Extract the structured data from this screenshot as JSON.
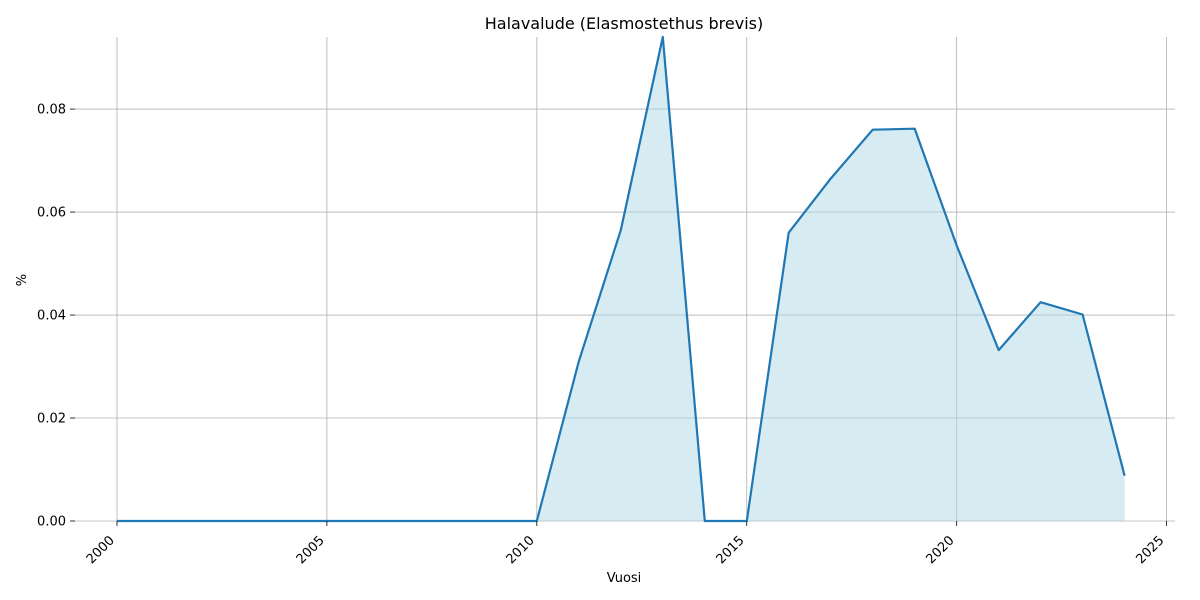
{
  "chart_data": {
    "type": "area",
    "title": "Halavalude (Elasmostethus brevis)",
    "xlabel": "Vuosi",
    "ylabel": "%",
    "xlim": [
      1999,
      2025.2
    ],
    "ylim": [
      0,
      0.094
    ],
    "xticks": [
      "2000",
      "2005",
      "2010",
      "2015",
      "2020",
      "2025"
    ],
    "yticks": [
      "0.00",
      "0.02",
      "0.04",
      "0.06",
      "0.08"
    ],
    "grid": true,
    "line_color": "#1f77b4",
    "fill_color": "#add8e6",
    "x": [
      2000,
      2001,
      2002,
      2003,
      2004,
      2005,
      2006,
      2007,
      2008,
      2009,
      2010,
      2011,
      2012,
      2013,
      2014,
      2015,
      2016,
      2017,
      2018,
      2019,
      2020,
      2021,
      2022,
      2023,
      2024
    ],
    "values": [
      0,
      0,
      0,
      0,
      0,
      0,
      0,
      0,
      0,
      0,
      0,
      0.031,
      0.0565,
      0.094,
      0,
      0,
      0.056,
      0.0665,
      0.076,
      0.0762,
      0.0535,
      0.0332,
      0.0425,
      0.0401,
      0.0088
    ]
  }
}
